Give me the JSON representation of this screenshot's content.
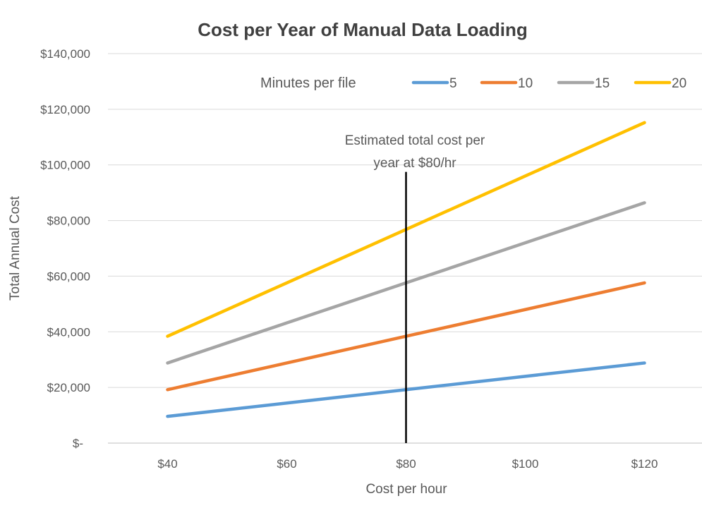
{
  "chart_data": {
    "type": "line",
    "title": "Cost per Year of Manual Data Loading",
    "xlabel": "Cost per hour",
    "ylabel": "Total Annual Cost",
    "categories": [
      "$40",
      "$60",
      "$80",
      "$100",
      "$120"
    ],
    "x": [
      40,
      60,
      80,
      100,
      120
    ],
    "xlim": [
      30,
      130
    ],
    "ylim": [
      0,
      140000
    ],
    "yticks": [
      0,
      20000,
      40000,
      60000,
      80000,
      100000,
      120000,
      140000
    ],
    "ytick_labels": [
      "$-",
      "$20,000",
      "$40,000",
      "$60,000",
      "$80,000",
      "$100,000",
      "$120,000",
      "$140,000"
    ],
    "grid": true,
    "legend": {
      "title": "Minutes per file",
      "placement": "top"
    },
    "series": [
      {
        "name": "5",
        "color": "#5B9BD5",
        "values": [
          9600,
          14400,
          19200,
          24000,
          28800
        ]
      },
      {
        "name": "10",
        "color": "#ED7D31",
        "values": [
          19200,
          28800,
          38400,
          48000,
          57600
        ]
      },
      {
        "name": "15",
        "color": "#A5A5A5",
        "values": [
          28800,
          43200,
          57600,
          72000,
          86400
        ]
      },
      {
        "name": "20",
        "color": "#FFC000",
        "values": [
          38400,
          57600,
          76800,
          96000,
          115200
        ]
      }
    ],
    "annotation": {
      "lines": [
        "Estimated total cost per",
        "year at $80/hr"
      ],
      "x": 80,
      "y_top": 97500,
      "color": "#000000"
    }
  }
}
